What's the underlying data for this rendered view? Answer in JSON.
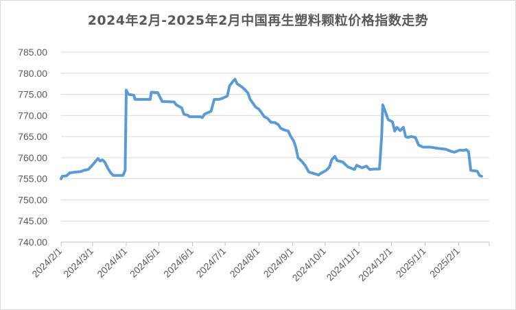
{
  "chart_data": {
    "type": "line",
    "title": "2024年2月-2025年2月中国再生塑料颗粒价格指数走势",
    "xlabel": "",
    "ylabel": "",
    "ylim": [
      740,
      785
    ],
    "yticks": [
      "785.00",
      "780.00",
      "775.00",
      "770.00",
      "765.00",
      "760.00",
      "755.00",
      "750.00",
      "745.00",
      "740.00"
    ],
    "xticks": [
      "2024/2/1",
      "2024/3/1",
      "2024/4/1",
      "2024/5/1",
      "2024/6/1",
      "2024/7/1",
      "2024/8/1",
      "2024/9/1",
      "2024/10/1",
      "2024/11/1",
      "2024/12/1",
      "2025/1/1",
      "2025/2/1"
    ],
    "x_range": [
      "2024-02-01",
      "2025-03-01"
    ],
    "grid": true,
    "legend": "none",
    "series": [
      {
        "color": "#5b9bd5",
        "points": [
          [
            "2024-02-01",
            755.0
          ],
          [
            "2024-02-02",
            755.6
          ],
          [
            "2024-02-06",
            755.7
          ],
          [
            "2024-02-09",
            756.4
          ],
          [
            "2024-02-15",
            756.6
          ],
          [
            "2024-02-19",
            756.7
          ],
          [
            "2024-02-22",
            757.0
          ],
          [
            "2024-02-26",
            757.2
          ],
          [
            "2024-02-29",
            758.0
          ],
          [
            "2024-03-01",
            758.3
          ],
          [
            "2024-03-04",
            759.2
          ],
          [
            "2024-03-06",
            759.8
          ],
          [
            "2024-03-08",
            759.2
          ],
          [
            "2024-03-10",
            759.5
          ],
          [
            "2024-03-12",
            759.0
          ],
          [
            "2024-03-15",
            757.5
          ],
          [
            "2024-03-18",
            756.3
          ],
          [
            "2024-03-20",
            755.8
          ],
          [
            "2024-03-29",
            755.8
          ],
          [
            "2024-03-31",
            757.0
          ],
          [
            "2024-04-01",
            776.0
          ],
          [
            "2024-04-03",
            775.0
          ],
          [
            "2024-04-08",
            774.8
          ],
          [
            "2024-04-09",
            773.8
          ],
          [
            "2024-04-15",
            773.8
          ],
          [
            "2024-04-23",
            773.8
          ],
          [
            "2024-04-24",
            775.5
          ],
          [
            "2024-04-30",
            775.4
          ],
          [
            "2024-05-04",
            773.3
          ],
          [
            "2024-05-15",
            773.2
          ],
          [
            "2024-05-17",
            772.5
          ],
          [
            "2024-05-22",
            771.8
          ],
          [
            "2024-05-24",
            770.3
          ],
          [
            "2024-05-28",
            770.0
          ],
          [
            "2024-05-29",
            769.7
          ],
          [
            "2024-06-08",
            769.7
          ],
          [
            "2024-06-10",
            769.5
          ],
          [
            "2024-06-12",
            770.3
          ],
          [
            "2024-06-18",
            771.0
          ],
          [
            "2024-06-21",
            773.8
          ],
          [
            "2024-06-25",
            773.8
          ],
          [
            "2024-06-28",
            774.0
          ],
          [
            "2024-07-03",
            774.6
          ],
          [
            "2024-07-05",
            777.0
          ],
          [
            "2024-07-08",
            778.0
          ],
          [
            "2024-07-10",
            778.6
          ],
          [
            "2024-07-12",
            777.5
          ],
          [
            "2024-07-15",
            777.0
          ],
          [
            "2024-07-18",
            776.4
          ],
          [
            "2024-07-22",
            775.3
          ],
          [
            "2024-07-24",
            773.8
          ],
          [
            "2024-07-29",
            772.0
          ],
          [
            "2024-08-01",
            771.5
          ],
          [
            "2024-08-03",
            770.8
          ],
          [
            "2024-08-06",
            769.7
          ],
          [
            "2024-08-09",
            769.3
          ],
          [
            "2024-08-12",
            768.4
          ],
          [
            "2024-08-16",
            768.3
          ],
          [
            "2024-08-19",
            767.8
          ],
          [
            "2024-08-21",
            767.0
          ],
          [
            "2024-08-24",
            766.6
          ],
          [
            "2024-08-28",
            766.3
          ],
          [
            "2024-08-30",
            765.2
          ],
          [
            "2024-09-02",
            764.0
          ],
          [
            "2024-09-04",
            762.5
          ],
          [
            "2024-09-06",
            760.0
          ],
          [
            "2024-09-10",
            759.0
          ],
          [
            "2024-09-13",
            758.0
          ],
          [
            "2024-09-16",
            756.6
          ],
          [
            "2024-09-20",
            756.3
          ],
          [
            "2024-09-25",
            755.9
          ],
          [
            "2024-09-27",
            756.3
          ],
          [
            "2024-10-02",
            757.0
          ],
          [
            "2024-10-05",
            757.8
          ],
          [
            "2024-10-07",
            759.5
          ],
          [
            "2024-10-10",
            760.3
          ],
          [
            "2024-10-12",
            759.3
          ],
          [
            "2024-10-17",
            759.0
          ],
          [
            "2024-10-22",
            757.8
          ],
          [
            "2024-10-25",
            757.5
          ],
          [
            "2024-10-28",
            757.2
          ],
          [
            "2024-10-30",
            758.2
          ],
          [
            "2024-11-04",
            757.6
          ],
          [
            "2024-11-08",
            758.0
          ],
          [
            "2024-11-11",
            757.2
          ],
          [
            "2024-11-15",
            757.3
          ],
          [
            "2024-11-20",
            757.3
          ],
          [
            "2024-11-22",
            765.0
          ],
          [
            "2024-11-23",
            772.5
          ],
          [
            "2024-11-26",
            770.5
          ],
          [
            "2024-11-28",
            769.0
          ],
          [
            "2024-12-02",
            768.5
          ],
          [
            "2024-12-04",
            766.3
          ],
          [
            "2024-12-06",
            767.2
          ],
          [
            "2024-12-09",
            766.4
          ],
          [
            "2024-12-12",
            767.2
          ],
          [
            "2024-12-14",
            765.0
          ],
          [
            "2024-12-16",
            764.8
          ],
          [
            "2024-12-19",
            765.0
          ],
          [
            "2024-12-23",
            764.8
          ],
          [
            "2024-12-26",
            763.0
          ],
          [
            "2024-12-30",
            762.5
          ],
          [
            "2025-01-06",
            762.5
          ],
          [
            "2025-01-10",
            762.3
          ],
          [
            "2025-01-20",
            762.0
          ],
          [
            "2025-01-25",
            761.5
          ],
          [
            "2025-01-28",
            761.3
          ],
          [
            "2025-02-02",
            761.8
          ],
          [
            "2025-02-05",
            761.7
          ],
          [
            "2025-02-08",
            761.9
          ],
          [
            "2025-02-10",
            761.4
          ],
          [
            "2025-02-12",
            757.0
          ],
          [
            "2025-02-18",
            756.8
          ],
          [
            "2025-02-20",
            755.8
          ],
          [
            "2025-02-22",
            755.6
          ]
        ]
      }
    ]
  }
}
